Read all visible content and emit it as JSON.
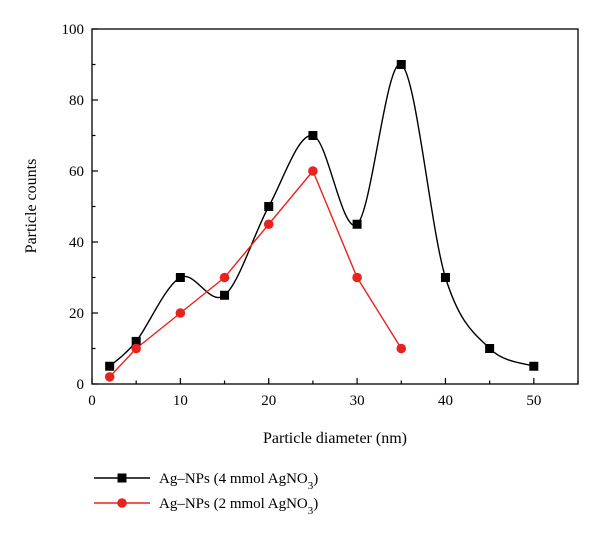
{
  "chart_data": {
    "type": "line",
    "title": "",
    "xlabel": "Particle diameter (nm)",
    "ylabel": "Particle counts",
    "xlim": [
      0,
      55
    ],
    "ylim": [
      0,
      100
    ],
    "xticks": [
      0,
      10,
      20,
      30,
      40,
      50
    ],
    "yticks": [
      0,
      20,
      40,
      60,
      80,
      100
    ],
    "grid": false,
    "legend_position": "bottom-left",
    "series": [
      {
        "name": "Ag–NPs (4 mmol AgNO",
        "name_subscript": "3",
        "name_suffix": ")",
        "color": "#000000",
        "marker": "square",
        "smooth": true,
        "x": [
          2,
          5,
          10,
          15,
          20,
          25,
          30,
          35,
          40,
          45,
          50
        ],
        "y": [
          5,
          12,
          30,
          25,
          50,
          70,
          45,
          90,
          30,
          10,
          5
        ]
      },
      {
        "name": "Ag–NPs (2 mmol AgNO",
        "name_subscript": "3",
        "name_suffix": ")",
        "color": "#e8231f",
        "marker": "circle",
        "smooth": false,
        "x": [
          2,
          5,
          10,
          15,
          20,
          25,
          30,
          35
        ],
        "y": [
          2,
          10,
          20,
          30,
          45,
          60,
          30,
          10
        ]
      }
    ]
  }
}
